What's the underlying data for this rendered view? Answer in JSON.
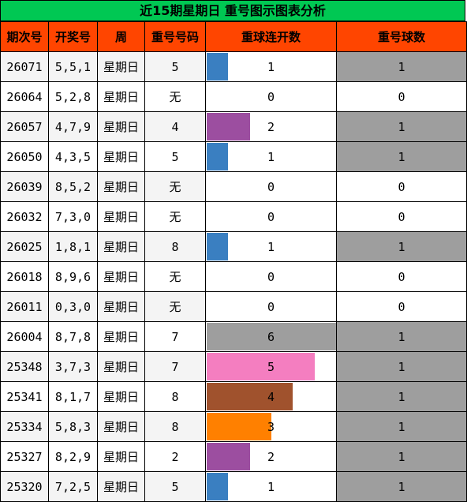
{
  "title": "近15期星期日  重号图示图表分析",
  "headers": [
    "期次号",
    "开奖号",
    "周",
    "重号号码",
    "重球连开数",
    "重号球数"
  ],
  "colors": {
    "title_bg": "#00c853",
    "header_bg": "#ff4500",
    "gray": "#9e9e9e",
    "blue": "#3a7fc1",
    "purple": "#9c4ea0",
    "pink": "#f47ec0",
    "brown": "#a0522d",
    "orange": "#ff8000"
  },
  "chart_data": {
    "type": "table",
    "title": "近15期星期日  重号图示图表分析",
    "columns": [
      "期次号",
      "开奖号",
      "周",
      "重号号码",
      "重球连开数",
      "重号球数"
    ],
    "streak_max": 6,
    "rows": [
      {
        "issue": "26071",
        "draw": "5,5,1",
        "week": "星期日",
        "repeat": "5",
        "streak": 1,
        "count": 1,
        "bar_color": "#3a7fc1"
      },
      {
        "issue": "26064",
        "draw": "5,2,8",
        "week": "星期日",
        "repeat": "无",
        "streak": 0,
        "count": 0,
        "bar_color": ""
      },
      {
        "issue": "26057",
        "draw": "4,7,9",
        "week": "星期日",
        "repeat": "4",
        "streak": 2,
        "count": 1,
        "bar_color": "#9c4ea0"
      },
      {
        "issue": "26050",
        "draw": "4,3,5",
        "week": "星期日",
        "repeat": "5",
        "streak": 1,
        "count": 1,
        "bar_color": "#3a7fc1"
      },
      {
        "issue": "26039",
        "draw": "8,5,2",
        "week": "星期日",
        "repeat": "无",
        "streak": 0,
        "count": 0,
        "bar_color": ""
      },
      {
        "issue": "26032",
        "draw": "7,3,0",
        "week": "星期日",
        "repeat": "无",
        "streak": 0,
        "count": 0,
        "bar_color": ""
      },
      {
        "issue": "26025",
        "draw": "1,8,1",
        "week": "星期日",
        "repeat": "8",
        "streak": 1,
        "count": 1,
        "bar_color": "#3a7fc1"
      },
      {
        "issue": "26018",
        "draw": "8,9,6",
        "week": "星期日",
        "repeat": "无",
        "streak": 0,
        "count": 0,
        "bar_color": ""
      },
      {
        "issue": "26011",
        "draw": "0,3,0",
        "week": "星期日",
        "repeat": "无",
        "streak": 0,
        "count": 0,
        "bar_color": ""
      },
      {
        "issue": "26004",
        "draw": "8,7,8",
        "week": "星期日",
        "repeat": "7",
        "streak": 6,
        "count": 1,
        "bar_color": "#9e9e9e"
      },
      {
        "issue": "25348",
        "draw": "3,7,3",
        "week": "星期日",
        "repeat": "7",
        "streak": 5,
        "count": 1,
        "bar_color": "#f47ec0"
      },
      {
        "issue": "25341",
        "draw": "8,1,7",
        "week": "星期日",
        "repeat": "8",
        "streak": 4,
        "count": 1,
        "bar_color": "#a0522d"
      },
      {
        "issue": "25334",
        "draw": "5,8,3",
        "week": "星期日",
        "repeat": "8",
        "streak": 3,
        "count": 1,
        "bar_color": "#ff8000"
      },
      {
        "issue": "25327",
        "draw": "8,2,9",
        "week": "星期日",
        "repeat": "2",
        "streak": 2,
        "count": 1,
        "bar_color": "#9c4ea0"
      },
      {
        "issue": "25320",
        "draw": "7,2,5",
        "week": "星期日",
        "repeat": "5",
        "streak": 1,
        "count": 1,
        "bar_color": "#3a7fc1"
      }
    ]
  }
}
